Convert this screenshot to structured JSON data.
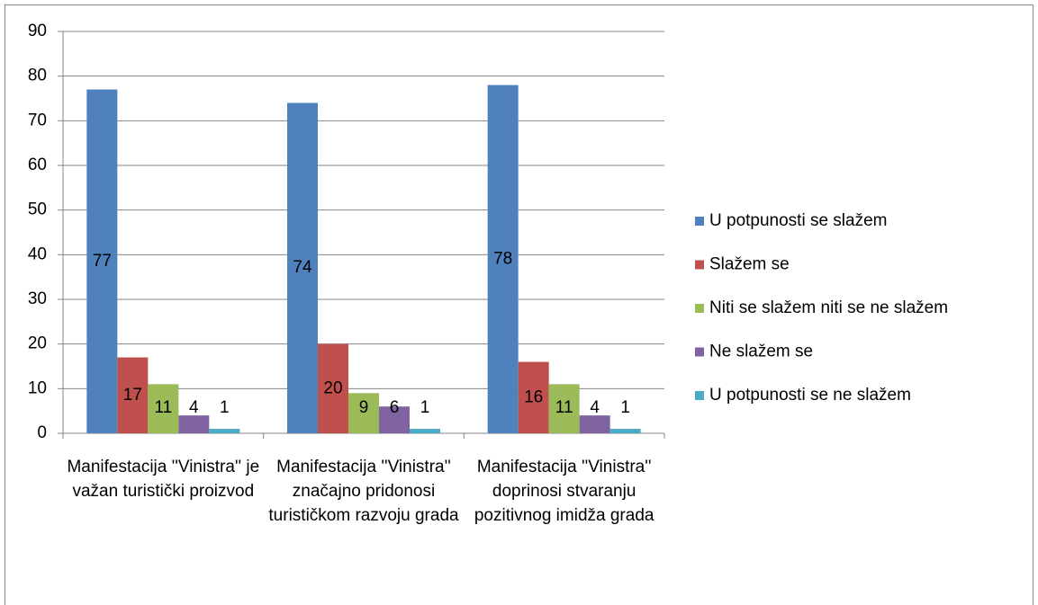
{
  "chart_data": {
    "type": "bar",
    "categories": [
      "Manifestacija ''Vinistra'' je važan turistički proizvod",
      "Manifestacija ''Vinistra'' značajno pridonosi turističkom razvoju grada",
      "Manifestacija ''Vinistra'' doprinosi stvaranju pozitivnog imidža grada"
    ],
    "series": [
      {
        "name": "U potpunosti se slažem",
        "color": "#4f81bd",
        "values": [
          77,
          74,
          78
        ]
      },
      {
        "name": "Slažem se",
        "color": "#c0504d",
        "values": [
          17,
          20,
          16
        ]
      },
      {
        "name": "Niti se slažem niti se ne slažem",
        "color": "#9bbb59",
        "values": [
          11,
          9,
          11
        ]
      },
      {
        "name": "Ne slažem se",
        "color": "#8064a2",
        "values": [
          4,
          6,
          4
        ]
      },
      {
        "name": "U potpunosti se ne slažem",
        "color": "#4bacc6",
        "values": [
          1,
          1,
          1
        ]
      }
    ],
    "ylim": [
      0,
      90
    ],
    "yticks": [
      0,
      10,
      20,
      30,
      40,
      50,
      60,
      70,
      80,
      90
    ],
    "grid": true,
    "legend": "right"
  }
}
